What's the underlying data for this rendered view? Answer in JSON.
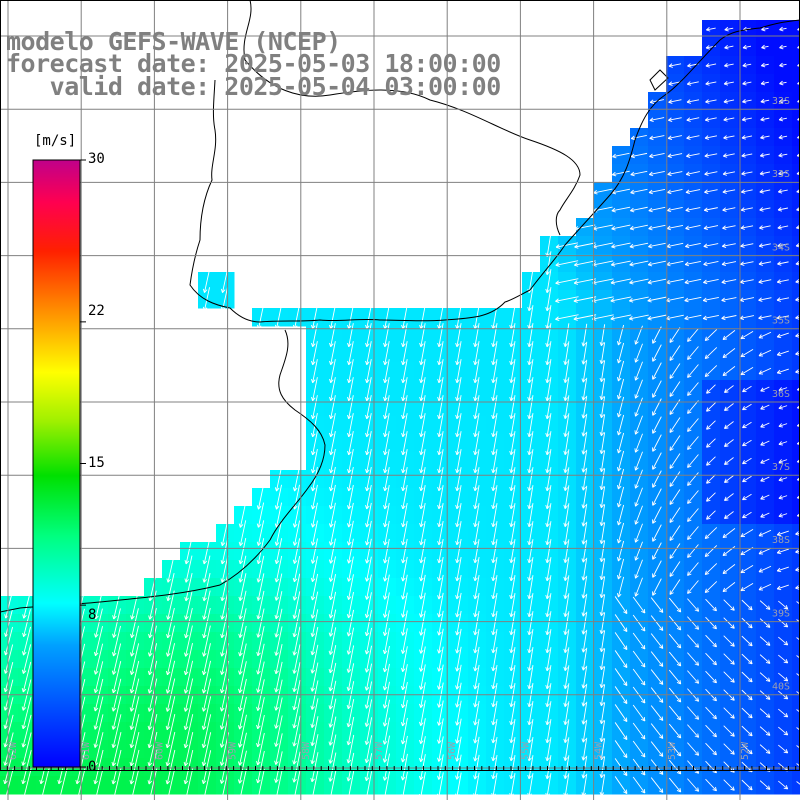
{
  "title": {
    "line1": "modelo GEFS-WAVE (NCEP)",
    "line2": "forecast date: 2025-05-03 18:00:00",
    "line3": "   valid date: 2025-05-04 03:00:00"
  },
  "colorbar": {
    "unit": "[m/s]",
    "min": 0,
    "max": 30,
    "ticks": [
      "30",
      "22",
      "15",
      "8",
      "0"
    ],
    "tick_values": [
      30,
      22,
      15,
      8,
      0
    ],
    "colors": [
      "#0000ff",
      "#0060ff",
      "#00b4ff",
      "#00ffff",
      "#00ff80",
      "#00d000",
      "#80e000",
      "#ffff00",
      "#ffa000",
      "#ff3000",
      "#ff0000",
      "#e00060",
      "#c80080"
    ]
  },
  "grid": {
    "lat_labels": [
      "32S",
      "33S",
      "34S",
      "35S",
      "36S",
      "37S",
      "38S",
      "39S",
      "40S"
    ],
    "lon_labels": [
      "62W",
      "61W",
      "60W",
      "59W",
      "58W",
      "57W",
      "56W",
      "55W",
      "54W",
      "53W",
      "52W"
    ],
    "line_color": "#808080"
  },
  "map": {
    "land_color": "#ffffff",
    "coast_color": "#000000",
    "arrow_color": "#ffffff"
  }
}
